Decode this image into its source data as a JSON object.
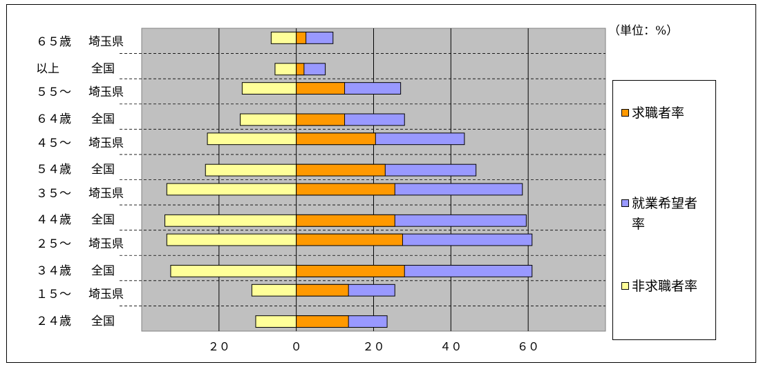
{
  "unit_note": "（単位：%）",
  "chart_data": {
    "type": "bar",
    "orientation": "horizontal",
    "stacked": true,
    "xlim": [
      -40,
      80
    ],
    "x_ticks": [
      -20,
      0,
      20,
      40,
      60
    ],
    "x_tick_labels": [
      "２０",
      "０",
      "２０",
      "４０",
      "６０"
    ],
    "grid": true,
    "legend_position": "right",
    "colors": {
      "plot_bg": "#c0c0c0",
      "求職者率": "#ff9900",
      "就業希望者率": "#9999ff",
      "非求職者率": "#ffff99"
    },
    "groups": [
      {
        "label_line1": "６５歳",
        "label_line2": "以上"
      },
      {
        "label_line1": "５５～",
        "label_line2": "６４歳"
      },
      {
        "label_line1": "４５～",
        "label_line2": "５４歳"
      },
      {
        "label_line1": "３５～",
        "label_line2": "４４歳"
      },
      {
        "label_line1": "２５～",
        "label_line2": "３４歳"
      },
      {
        "label_line1": "１５～",
        "label_line2": "２４歳"
      }
    ],
    "regions": [
      "埼玉県",
      "全国"
    ],
    "series": [
      {
        "name": "求職者率",
        "values": [
          2.5,
          2.0,
          12.5,
          12.5,
          20.5,
          23.0,
          25.5,
          25.5,
          27.5,
          28.0,
          13.5,
          13.5
        ]
      },
      {
        "name": "就業希望者率",
        "values": [
          9.5,
          7.5,
          27.0,
          28.0,
          43.5,
          46.5,
          58.5,
          59.5,
          61.0,
          61.0,
          25.5,
          23.5
        ]
      },
      {
        "name": "非求職者率",
        "values": [
          -6.5,
          -5.5,
          -14.0,
          -14.5,
          -23.0,
          -23.5,
          -33.5,
          -34.0,
          -33.5,
          -32.5,
          -11.5,
          -10.5
        ]
      }
    ],
    "legend": [
      "求職者率",
      "就業希望者率",
      "非求職者率"
    ]
  }
}
